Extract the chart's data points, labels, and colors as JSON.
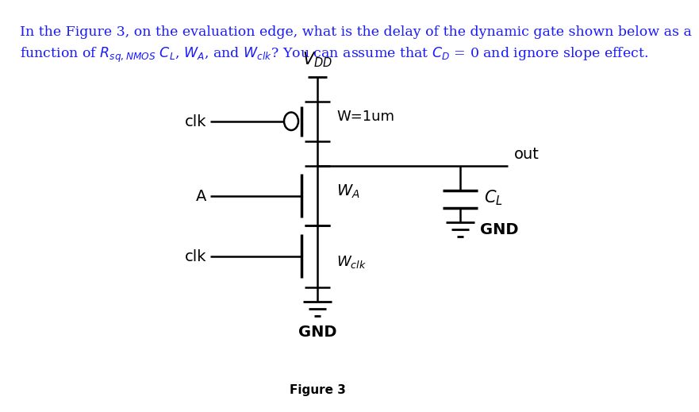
{
  "background_color": "#ffffff",
  "line_color": "#000000",
  "text_color": "#1a1aff",
  "circuit_color": "#000000",
  "title_line1": "In the Figure 3, on the evaluation edge, what is the delay of the dynamic gate shown below as a",
  "title_line2_plain": "function of ",
  "title_line2_end": " and ignore slope effect.",
  "fig_label": "Figure 3",
  "title_fontsize": 12.5,
  "circuit_fontsize": 14
}
